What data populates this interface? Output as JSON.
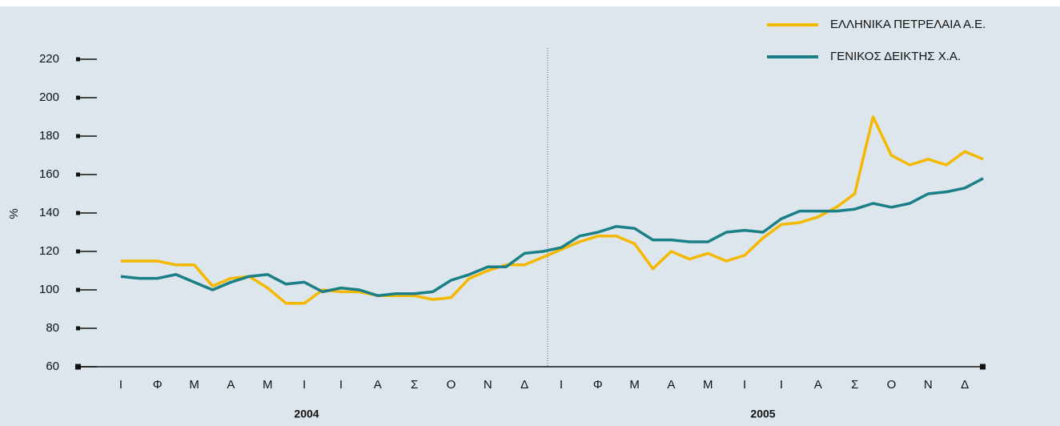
{
  "chart_data": {
    "type": "line",
    "y_label": "%",
    "ylim": [
      60,
      220
    ],
    "yticks": [
      60,
      80,
      100,
      120,
      140,
      160,
      180,
      200,
      220
    ],
    "categories": [
      "Ι",
      null,
      "Φ",
      null,
      "Μ",
      null,
      "Α",
      null,
      "Μ",
      null,
      "Ι",
      null,
      "Ι",
      null,
      "Α",
      null,
      "Σ",
      null,
      "Ο",
      null,
      "Ν",
      null,
      "Δ",
      null,
      "Ι",
      null,
      "Φ",
      null,
      "Μ",
      null,
      "Α",
      null,
      "Μ",
      null,
      "Ι",
      null,
      "Ι",
      null,
      "Α",
      null,
      "Σ",
      null,
      "Ο",
      null,
      "Ν",
      null,
      "Δ",
      null
    ],
    "group_labels": [
      "2004",
      "2005"
    ],
    "legend": "top-right",
    "series": [
      {
        "name": "ΕΛΛΗΝΙΚΑ ΠΕΤΡΕΛΑΙΑ Α.Ε.",
        "color": "#f5b800",
        "values": [
          115,
          115,
          115,
          113,
          113,
          102,
          106,
          107,
          101,
          93,
          93,
          100,
          99,
          99,
          97,
          97,
          97,
          95,
          96,
          106,
          110,
          113,
          113,
          117,
          121,
          125,
          128,
          128,
          124,
          111,
          120,
          116,
          119,
          115,
          118,
          127,
          134,
          135,
          138,
          143,
          150,
          190,
          170,
          165,
          168,
          165,
          172,
          168
        ]
      },
      {
        "name": "ΓΕΝΙΚΟΣ ΔΕΙΚΤΗΣ Χ.Α.",
        "color": "#1a7f86",
        "values": [
          107,
          106,
          106,
          108,
          104,
          100,
          104,
          107,
          108,
          103,
          104,
          99,
          101,
          100,
          97,
          98,
          98,
          99,
          105,
          108,
          112,
          112,
          119,
          120,
          122,
          128,
          130,
          133,
          132,
          126,
          126,
          125,
          125,
          130,
          131,
          130,
          137,
          141,
          141,
          141,
          142,
          145,
          143,
          145,
          150,
          151,
          153,
          158
        ]
      }
    ]
  }
}
